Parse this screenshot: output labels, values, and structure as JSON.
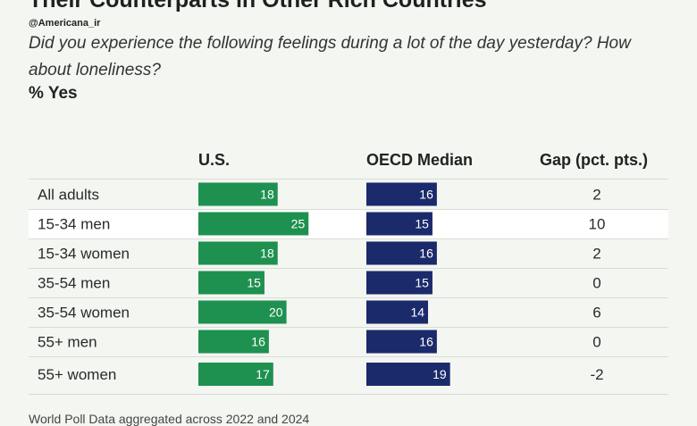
{
  "header": {
    "title": "Their Counterparts in Other Rich Countries",
    "handle": "@Americana_ir",
    "subtitle": "Did you experience the following feelings during a lot of the day yesterday? How about loneliness?",
    "unit_label": "% Yes"
  },
  "footer": {
    "note": "World Poll Data aggregated across 2022 and 2024"
  },
  "chart_data": {
    "type": "bar",
    "columns": [
      "U.S.",
      "OECD Median",
      "Gap (pct. pts.)"
    ],
    "categories": [
      "All adults",
      "15-34 men",
      "15-34 women",
      "35-54 men",
      "35-54 women",
      "55+ men",
      "55+ women"
    ],
    "series": [
      {
        "name": "U.S.",
        "values": [
          18,
          25,
          18,
          15,
          20,
          16,
          17
        ]
      },
      {
        "name": "OECD Median",
        "values": [
          16,
          15,
          16,
          15,
          14,
          16,
          19
        ]
      }
    ],
    "gap": [
      "2",
      "10",
      "2",
      "0",
      "6",
      "0",
      "-2"
    ],
    "highlighted_row": 1,
    "colors": {
      "us": "#1e9150",
      "oecd": "#1b2a6b",
      "highlight": "#ffffff",
      "divider": "#d9dcd6"
    }
  }
}
